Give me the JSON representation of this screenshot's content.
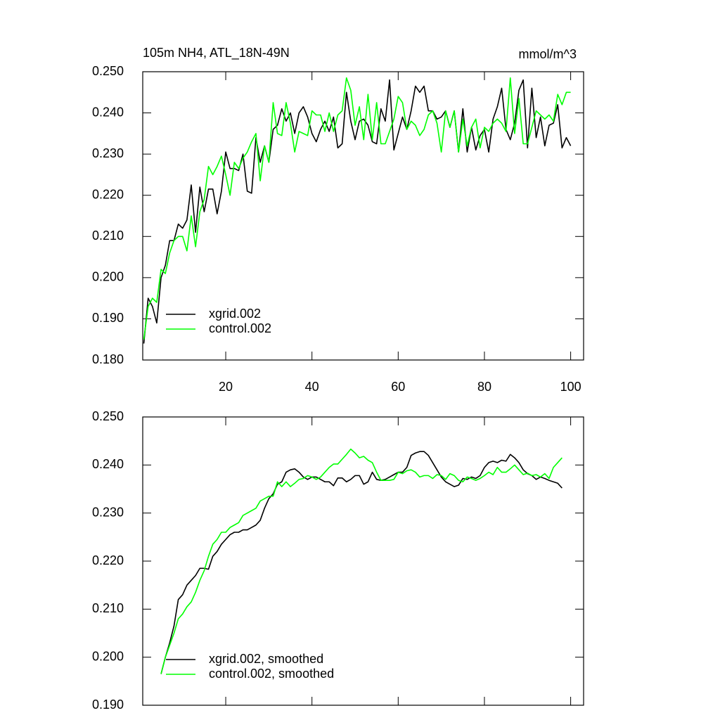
{
  "chart_data": [
    {
      "type": "line",
      "title": "105m NH4, ATL_18N-49N",
      "subtitle": "mmol/m^3",
      "x": [
        1,
        2,
        3,
        4,
        5,
        6,
        7,
        8,
        9,
        10,
        11,
        12,
        13,
        14,
        15,
        16,
        17,
        18,
        19,
        20,
        21,
        22,
        23,
        24,
        25,
        26,
        27,
        28,
        29,
        30,
        31,
        32,
        33,
        34,
        35,
        36,
        37,
        38,
        39,
        40,
        41,
        42,
        43,
        44,
        45,
        46,
        47,
        48,
        49,
        50,
        51,
        52,
        53,
        54,
        55,
        56,
        57,
        58,
        59,
        60,
        61,
        62,
        63,
        64,
        65,
        66,
        67,
        68,
        69,
        70,
        71,
        72,
        73,
        74,
        75,
        76,
        77,
        78,
        79,
        80,
        81,
        82,
        83,
        84,
        85,
        86,
        87,
        88,
        89,
        90,
        91,
        92,
        93,
        94,
        95,
        96,
        97,
        98,
        99,
        100
      ],
      "series": [
        {
          "name": "xgrid.002",
          "color": "#000000",
          "values": [
            0.184,
            0.195,
            0.193,
            0.189,
            0.2,
            0.203,
            0.209,
            0.209,
            0.213,
            0.212,
            0.214,
            0.2225,
            0.211,
            0.222,
            0.216,
            0.2215,
            0.2215,
            0.2155,
            0.221,
            0.2305,
            0.2265,
            0.2265,
            0.226,
            0.23,
            0.221,
            0.2205,
            0.234,
            0.228,
            0.232,
            0.228,
            0.236,
            0.237,
            0.241,
            0.238,
            0.24,
            0.235,
            0.24,
            0.2415,
            0.239,
            0.235,
            0.233,
            0.236,
            0.238,
            0.2355,
            0.239,
            0.2315,
            0.2325,
            0.245,
            0.238,
            0.2335,
            0.238,
            0.2385,
            0.237,
            0.233,
            0.2325,
            0.241,
            0.238,
            0.248,
            0.231,
            0.235,
            0.239,
            0.236,
            0.2405,
            0.2465,
            0.245,
            0.2465,
            0.2405,
            0.2405,
            0.2385,
            0.239,
            0.2405,
            0.2365,
            0.2405,
            0.2305,
            0.241,
            0.2305,
            0.2365,
            0.231,
            0.2345,
            0.236,
            0.2305,
            0.2385,
            0.2415,
            0.246,
            0.236,
            0.2335,
            0.2375,
            0.2455,
            0.248,
            0.2315,
            0.246,
            0.234,
            0.239,
            0.232,
            0.237,
            0.2375,
            0.242,
            0.2315,
            0.234,
            0.232
          ]
        },
        {
          "name": "control.002",
          "color": "#00ff00",
          "values": [
            0.185,
            0.193,
            0.195,
            0.194,
            0.202,
            0.201,
            0.206,
            0.209,
            0.21,
            0.21,
            0.2065,
            0.215,
            0.2075,
            0.216,
            0.219,
            0.227,
            0.225,
            0.227,
            0.2295,
            0.225,
            0.22,
            0.228,
            0.2265,
            0.229,
            0.2305,
            0.233,
            0.235,
            0.2235,
            0.232,
            0.228,
            0.2425,
            0.235,
            0.2345,
            0.2425,
            0.2375,
            0.2305,
            0.2355,
            0.235,
            0.2345,
            0.2405,
            0.2395,
            0.2395,
            0.2355,
            0.24,
            0.2355,
            0.2395,
            0.2405,
            0.2485,
            0.2455,
            0.237,
            0.2415,
            0.2335,
            0.2445,
            0.2335,
            0.2425,
            0.2325,
            0.2325,
            0.2355,
            0.2385,
            0.244,
            0.2425,
            0.236,
            0.238,
            0.237,
            0.2345,
            0.236,
            0.2395,
            0.2405,
            0.2375,
            0.2305,
            0.2405,
            0.2365,
            0.2405,
            0.2305,
            0.2385,
            0.232,
            0.2365,
            0.2385,
            0.2315,
            0.2365,
            0.2355,
            0.2375,
            0.2385,
            0.2375,
            0.2355,
            0.2485,
            0.235,
            0.2435,
            0.2325,
            0.2325,
            0.2365,
            0.2405,
            0.2395,
            0.2385,
            0.2395,
            0.238,
            0.2445,
            0.242,
            0.245,
            0.245
          ]
        }
      ],
      "xlim": [
        0.75,
        103
      ],
      "xticks": [
        20,
        40,
        60,
        80,
        100
      ],
      "ylim": [
        0.18,
        0.25
      ],
      "yticks": [
        {
          "value": 0.18,
          "label": "0.180"
        },
        {
          "value": 0.19,
          "label": "0.190"
        },
        {
          "value": 0.2,
          "label": "0.200"
        },
        {
          "value": 0.21,
          "label": "0.210"
        },
        {
          "value": 0.22,
          "label": "0.220"
        },
        {
          "value": 0.23,
          "label": "0.230"
        },
        {
          "value": 0.24,
          "label": "0.240"
        },
        {
          "value": 0.25,
          "label": "0.250"
        }
      ],
      "legend": "lower left"
    },
    {
      "type": "line",
      "x": [
        5,
        6,
        7,
        8,
        9,
        10,
        11,
        12,
        13,
        14,
        15,
        16,
        17,
        18,
        19,
        20,
        21,
        22,
        23,
        24,
        25,
        26,
        27,
        28,
        29,
        30,
        31,
        32,
        33,
        34,
        35,
        36,
        37,
        38,
        39,
        40,
        41,
        42,
        43,
        44,
        45,
        46,
        47,
        48,
        49,
        50,
        51,
        52,
        53,
        54,
        55,
        56,
        57,
        58,
        59,
        60,
        61,
        62,
        63,
        64,
        65,
        66,
        67,
        68,
        69,
        70,
        71,
        72,
        73,
        74,
        75,
        76,
        77,
        78,
        79,
        80,
        81,
        82,
        83,
        84,
        85,
        86,
        87,
        88,
        89,
        90,
        91,
        92,
        93,
        94,
        95,
        96,
        97,
        98
      ],
      "series": [
        {
          "name": "xgrid.002, smoothed",
          "color": "#000000",
          "values": [
            0.1965,
            0.2,
            0.203,
            0.2065,
            0.212,
            0.213,
            0.215,
            0.216,
            0.217,
            0.2185,
            0.2185,
            0.2183,
            0.221,
            0.222,
            0.2235,
            0.2245,
            0.2255,
            0.226,
            0.226,
            0.2265,
            0.2265,
            0.227,
            0.2275,
            0.2285,
            0.231,
            0.233,
            0.234,
            0.236,
            0.2365,
            0.2385,
            0.239,
            0.2392,
            0.2385,
            0.2375,
            0.237,
            0.2375,
            0.2375,
            0.237,
            0.2365,
            0.2365,
            0.2357,
            0.2373,
            0.2373,
            0.2365,
            0.237,
            0.2378,
            0.2378,
            0.236,
            0.2365,
            0.2385,
            0.237,
            0.2368,
            0.237,
            0.2375,
            0.238,
            0.2385,
            0.2385,
            0.2395,
            0.242,
            0.2425,
            0.2428,
            0.2428,
            0.242,
            0.2405,
            0.239,
            0.2375,
            0.2365,
            0.236,
            0.2355,
            0.2358,
            0.2372,
            0.237,
            0.2375,
            0.2372,
            0.2378,
            0.2395,
            0.2405,
            0.2408,
            0.2405,
            0.241,
            0.2408,
            0.2422,
            0.2415,
            0.2405,
            0.239,
            0.2382,
            0.2378,
            0.237,
            0.2375,
            0.2372,
            0.2368,
            0.2365,
            0.2362,
            0.2352
          ]
        },
        {
          "name": "control.002, smoothed",
          "color": "#00ff00",
          "values": [
            0.1965,
            0.2,
            0.2025,
            0.205,
            0.208,
            0.209,
            0.2105,
            0.2115,
            0.2135,
            0.216,
            0.218,
            0.221,
            0.2235,
            0.2245,
            0.226,
            0.226,
            0.227,
            0.2275,
            0.228,
            0.2295,
            0.23,
            0.2305,
            0.231,
            0.2325,
            0.233,
            0.2335,
            0.2335,
            0.2365,
            0.2355,
            0.2365,
            0.2355,
            0.2362,
            0.237,
            0.2372,
            0.2378,
            0.2375,
            0.237,
            0.2375,
            0.2385,
            0.2395,
            0.2402,
            0.2402,
            0.2412,
            0.2422,
            0.2433,
            0.2425,
            0.2415,
            0.2418,
            0.241,
            0.2405,
            0.2385,
            0.2368,
            0.2368,
            0.2368,
            0.237,
            0.2385,
            0.2382,
            0.2388,
            0.239,
            0.2385,
            0.2375,
            0.2378,
            0.2378,
            0.2372,
            0.238,
            0.2378,
            0.237,
            0.2382,
            0.2378,
            0.2368,
            0.2365,
            0.2375,
            0.2372,
            0.2368,
            0.2372,
            0.2378,
            0.2385,
            0.238,
            0.2395,
            0.2385,
            0.2385,
            0.2392,
            0.24,
            0.239,
            0.238,
            0.2383,
            0.2378,
            0.238,
            0.2375,
            0.2382,
            0.2372,
            0.2395,
            0.2405,
            0.2415
          ]
        }
      ],
      "xlim": [
        0.75,
        103
      ],
      "xticks": [
        20,
        40,
        60,
        80,
        100
      ],
      "xtick_labels": false,
      "ylim": [
        0.19,
        0.25
      ],
      "yticks": [
        {
          "value": 0.19,
          "label": "0.190"
        },
        {
          "value": 0.2,
          "label": "0.200"
        },
        {
          "value": 0.21,
          "label": "0.210"
        },
        {
          "value": 0.22,
          "label": "0.220"
        },
        {
          "value": 0.23,
          "label": "0.230"
        },
        {
          "value": 0.24,
          "label": "0.240"
        },
        {
          "value": 0.25,
          "label": "0.250"
        }
      ],
      "legend": "lower left"
    }
  ]
}
